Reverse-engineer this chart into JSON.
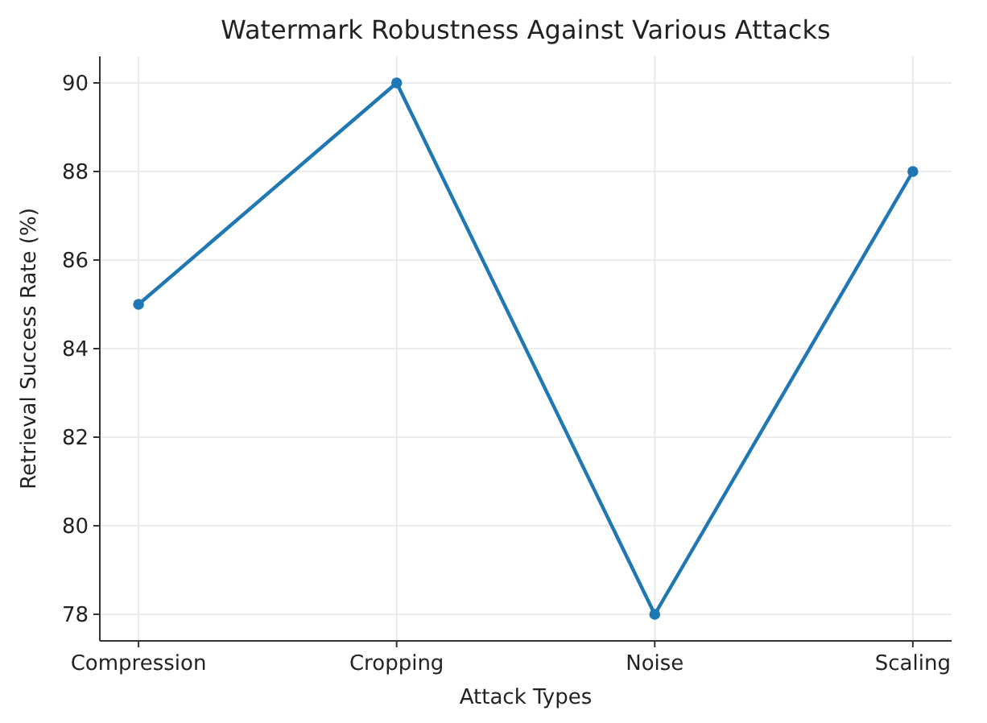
{
  "chart_data": {
    "type": "line",
    "title": "Watermark Robustness Against Various Attacks",
    "xlabel": "Attack Types",
    "ylabel": "Retrieval Success Rate (%)",
    "categories": [
      "Compression",
      "Cropping",
      "Noise",
      "Scaling"
    ],
    "series": [
      {
        "color": "#1f77b4",
        "values": [
          85,
          90,
          78,
          88
        ]
      }
    ],
    "ylim": [
      77.4,
      90.6
    ],
    "yticks": [
      78,
      80,
      82,
      84,
      86,
      88,
      90
    ],
    "grid": true,
    "marker": "circle",
    "line_style": "solid"
  }
}
